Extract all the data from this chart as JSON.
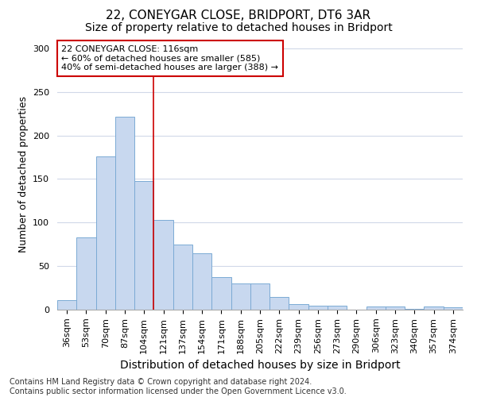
{
  "title": "22, CONEYGAR CLOSE, BRIDPORT, DT6 3AR",
  "subtitle": "Size of property relative to detached houses in Bridport",
  "xlabel": "Distribution of detached houses by size in Bridport",
  "ylabel": "Number of detached properties",
  "categories": [
    "36sqm",
    "53sqm",
    "70sqm",
    "87sqm",
    "104sqm",
    "121sqm",
    "137sqm",
    "154sqm",
    "171sqm",
    "188sqm",
    "205sqm",
    "222sqm",
    "239sqm",
    "256sqm",
    "273sqm",
    "290sqm",
    "306sqm",
    "323sqm",
    "340sqm",
    "357sqm",
    "374sqm"
  ],
  "values": [
    11,
    83,
    176,
    222,
    148,
    103,
    75,
    65,
    37,
    30,
    30,
    15,
    6,
    5,
    5,
    0,
    4,
    4,
    1,
    4,
    3
  ],
  "bar_color": "#c8d8ef",
  "bar_edge_color": "#7baad4",
  "vline_x": 4.5,
  "vline_color": "#cc0000",
  "annotation_text": "22 CONEYGAR CLOSE: 116sqm\n← 60% of detached houses are smaller (585)\n40% of semi-detached houses are larger (388) →",
  "annotation_box_facecolor": "#ffffff",
  "annotation_box_edgecolor": "#cc0000",
  "ylim": [
    0,
    310
  ],
  "yticks": [
    0,
    50,
    100,
    150,
    200,
    250,
    300
  ],
  "footnote": "Contains HM Land Registry data © Crown copyright and database right 2024.\nContains public sector information licensed under the Open Government Licence v3.0.",
  "bg_color": "#ffffff",
  "plot_bg_color": "#ffffff",
  "grid_color": "#d0d8e8",
  "title_fontsize": 11,
  "subtitle_fontsize": 10,
  "ylabel_fontsize": 9,
  "xlabel_fontsize": 10,
  "tick_fontsize": 8,
  "annot_fontsize": 8,
  "footnote_fontsize": 7
}
